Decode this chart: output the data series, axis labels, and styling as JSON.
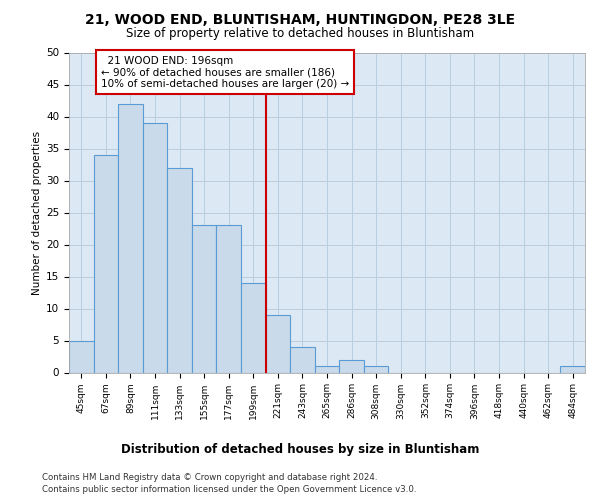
{
  "title": "21, WOOD END, BLUNTISHAM, HUNTINGDON, PE28 3LE",
  "subtitle": "Size of property relative to detached houses in Bluntisham",
  "xlabel_bottom": "Distribution of detached houses by size in Bluntisham",
  "ylabel": "Number of detached properties",
  "categories": [
    "45sqm",
    "67sqm",
    "89sqm",
    "111sqm",
    "133sqm",
    "155sqm",
    "177sqm",
    "199sqm",
    "221sqm",
    "243sqm",
    "265sqm",
    "286sqm",
    "308sqm",
    "330sqm",
    "352sqm",
    "374sqm",
    "396sqm",
    "418sqm",
    "440sqm",
    "462sqm",
    "484sqm"
  ],
  "values": [
    5,
    34,
    42,
    39,
    32,
    23,
    23,
    14,
    9,
    4,
    1,
    2,
    1,
    0,
    0,
    0,
    0,
    0,
    0,
    0,
    1
  ],
  "bar_color": "#c9daea",
  "bar_edge_color": "#5b9bd5",
  "ylim": [
    0,
    50
  ],
  "yticks": [
    0,
    5,
    10,
    15,
    20,
    25,
    30,
    35,
    40,
    45,
    50
  ],
  "red_line_x": 7.5,
  "annotation_text": "  21 WOOD END: 196sqm\n← 90% of detached houses are smaller (186)\n10% of semi-detached houses are larger (20) →",
  "annotation_box_color": "#ffffff",
  "annotation_border_color": "#cc0000",
  "red_line_color": "#cc0000",
  "grid_color": "#b8cfe0",
  "bg_color": "#dce9f5",
  "fig_bg_color": "#ffffff",
  "footer_line1": "Contains HM Land Registry data © Crown copyright and database right 2024.",
  "footer_line2": "Contains public sector information licensed under the Open Government Licence v3.0."
}
